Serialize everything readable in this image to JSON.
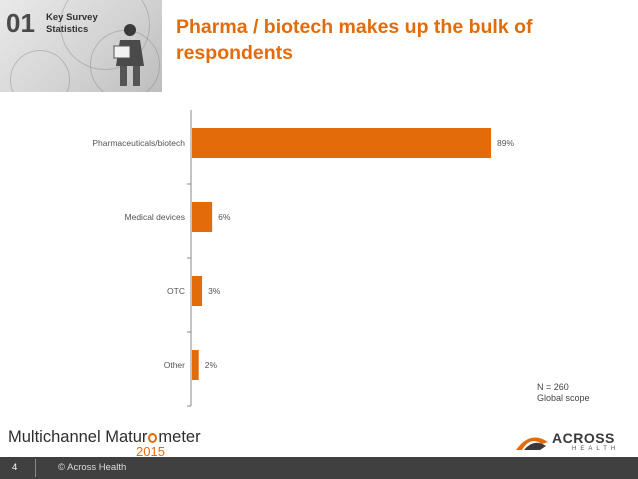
{
  "header": {
    "section_number": "01",
    "section_label_line1": "Key Survey",
    "section_label_line2": "Statistics",
    "title_line1": "Pharma / biotech makes up the bulk of",
    "title_line2": "respondents"
  },
  "chart_data": {
    "type": "bar",
    "orientation": "horizontal",
    "categories": [
      "Pharmaceuticals/biotech",
      "Medical devices",
      "OTC",
      "Other"
    ],
    "values": [
      89,
      6,
      3,
      2
    ],
    "value_labels": [
      "89%",
      "6%",
      "3%",
      "2%"
    ],
    "xlim": [
      0,
      100
    ],
    "bar_color": "#e36c0a",
    "grid": false,
    "legend": "none"
  },
  "notes": {
    "n_label": "N = 260",
    "scope_label": "Global scope"
  },
  "footer": {
    "brand_left_prefix": "Multichannel Matur",
    "brand_left_suffix": "meter",
    "brand_year": "2015",
    "brand_right_name": "ACROSS",
    "brand_right_sub": "HEALTH",
    "page_number": "4",
    "copyright": "© Across Health"
  },
  "colors": {
    "accent": "#e36c0a",
    "footer_bar": "#404040"
  }
}
